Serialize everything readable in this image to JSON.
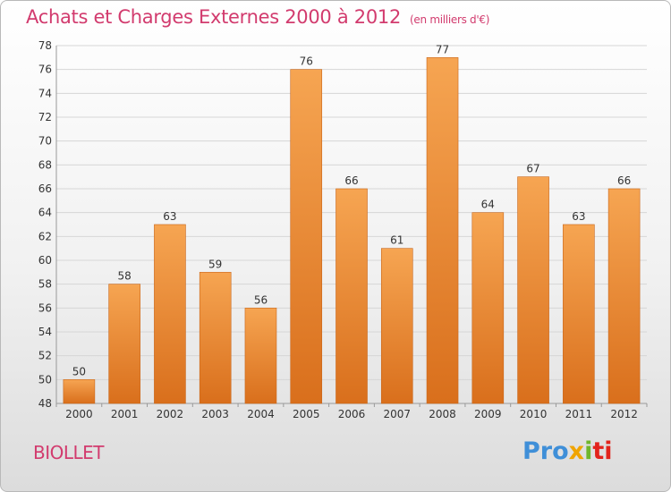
{
  "chart_data": {
    "type": "bar",
    "title": "Achats et Charges Externes 2000 à 2012",
    "subtitle": "(en milliers d'€)",
    "categories": [
      "2000",
      "2001",
      "2002",
      "2003",
      "2004",
      "2005",
      "2006",
      "2007",
      "2008",
      "2009",
      "2010",
      "2011",
      "2012"
    ],
    "values": [
      50,
      58,
      63,
      59,
      56,
      76,
      66,
      61,
      77,
      64,
      67,
      63,
      66
    ],
    "ylim": [
      48,
      78
    ],
    "yticks": [
      48,
      50,
      52,
      54,
      56,
      58,
      60,
      62,
      64,
      66,
      68,
      70,
      72,
      74,
      76,
      78
    ],
    "grid": true,
    "colors": {
      "bar_top": "#f6a552",
      "bar_bottom": "#d96f1c",
      "bar_edge": "#c9661a"
    }
  },
  "commune": "BIOLLET",
  "logo": {
    "parts": [
      "Pro",
      "x",
      "i",
      "ti"
    ]
  }
}
